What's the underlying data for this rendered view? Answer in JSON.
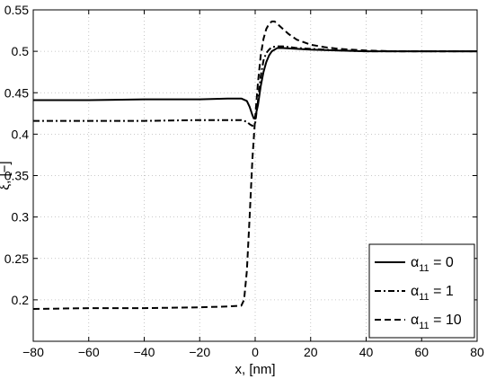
{
  "chart_data": {
    "type": "line",
    "xlabel": "x, [nm]",
    "ylabel": "ξ, [−]",
    "xlim": [
      -80,
      80
    ],
    "ylim": [
      0.15,
      0.55
    ],
    "xticks": [
      -80,
      -60,
      -40,
      -20,
      0,
      20,
      40,
      60,
      80
    ],
    "yticks": [
      0.2,
      0.25,
      0.3,
      0.35,
      0.4,
      0.45,
      0.5,
      0.55
    ],
    "xtick_labels": [
      "−80",
      "−60",
      "−40",
      "−20",
      "0",
      "20",
      "40",
      "60",
      "80"
    ],
    "ytick_labels": [
      "0.2",
      "0.25",
      "0.3",
      "0.35",
      "0.4",
      "0.45",
      "0.5",
      "0.55"
    ],
    "grid": true,
    "legend_position": "bottom-right",
    "series": [
      {
        "name": "α11 = 0",
        "legend_base": "α",
        "legend_sub": "11",
        "legend_rest": " = 0",
        "style": "solid",
        "color": "#000000",
        "x": [
          -80,
          -60,
          -40,
          -20,
          -10,
          -5,
          -3,
          -2,
          -1,
          -0.5,
          0,
          1,
          2,
          3,
          4,
          5,
          6,
          8,
          10,
          15,
          20,
          30,
          40,
          50,
          60,
          70,
          80
        ],
        "y": [
          0.441,
          0.441,
          0.442,
          0.442,
          0.443,
          0.443,
          0.44,
          0.433,
          0.423,
          0.419,
          0.42,
          0.435,
          0.458,
          0.475,
          0.487,
          0.495,
          0.5,
          0.504,
          0.504,
          0.503,
          0.502,
          0.501,
          0.5,
          0.5,
          0.5,
          0.5,
          0.5
        ]
      },
      {
        "name": "α11 = 1",
        "legend_base": "α",
        "legend_sub": "11",
        "legend_rest": " = 1",
        "style": "dashdot",
        "color": "#000000",
        "x": [
          -80,
          -60,
          -40,
          -20,
          -10,
          -5,
          -3,
          -2,
          -1,
          0,
          1,
          2,
          3,
          4,
          5,
          6,
          8,
          10,
          15,
          20,
          30,
          40,
          50,
          60,
          70,
          80
        ],
        "y": [
          0.416,
          0.416,
          0.416,
          0.417,
          0.417,
          0.417,
          0.415,
          0.412,
          0.41,
          0.413,
          0.44,
          0.47,
          0.489,
          0.498,
          0.502,
          0.505,
          0.506,
          0.506,
          0.504,
          0.503,
          0.501,
          0.5,
          0.5,
          0.5,
          0.5,
          0.5
        ]
      },
      {
        "name": "α11 = 10",
        "legend_base": "α",
        "legend_sub": "11",
        "legend_rest": " = 10",
        "style": "dashed",
        "color": "#000000",
        "x": [
          -80,
          -60,
          -40,
          -20,
          -10,
          -5,
          -4,
          -3,
          -2,
          -1,
          0,
          1,
          2,
          3,
          4,
          5,
          6,
          7,
          8,
          10,
          12,
          15,
          20,
          25,
          30,
          40,
          50,
          60,
          80
        ],
        "y": [
          0.189,
          0.19,
          0.19,
          0.191,
          0.192,
          0.193,
          0.2,
          0.235,
          0.3,
          0.37,
          0.42,
          0.462,
          0.495,
          0.515,
          0.527,
          0.533,
          0.536,
          0.536,
          0.533,
          0.527,
          0.521,
          0.514,
          0.508,
          0.505,
          0.503,
          0.501,
          0.5,
          0.5,
          0.5
        ]
      }
    ]
  }
}
